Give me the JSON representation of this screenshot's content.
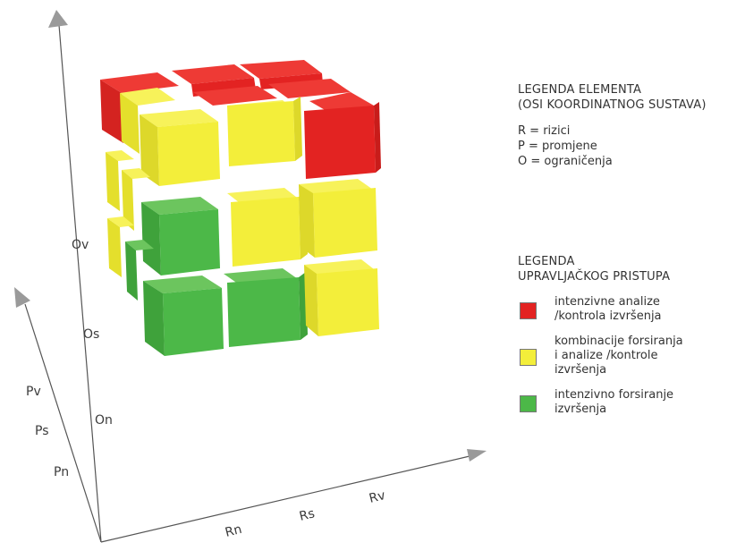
{
  "axis_labels": {
    "o": [
      "On",
      "Os",
      "Ov"
    ],
    "p": [
      "Pn",
      "Ps",
      "Pv"
    ],
    "r": [
      "Rn",
      "Rs",
      "Rv"
    ]
  },
  "legend": {
    "elements_title_1": "LEGENDA ELEMENTA",
    "elements_title_2": "(OSI KOORDINATNOG SUSTAVA)",
    "definitions": [
      "R = rizici",
      "P = promjene",
      "O = ograničenja"
    ],
    "approach_title_1": "LEGENDA",
    "approach_title_2": "UPRAVLJAČKOG PRISTUPA",
    "items": [
      {
        "color": "#e32322",
        "lines": [
          "intenzivne analize",
          "/kontrola izvršenja"
        ]
      },
      {
        "color": "#f3ee3a",
        "lines": [
          "kombinacije forsiranja",
          "i analize /kontrole",
          "izvršenja"
        ]
      },
      {
        "color": "#4cb848",
        "lines": [
          "intenzivno forsiranje",
          "izvršenja"
        ]
      }
    ]
  },
  "colors": {
    "red": "#e32322",
    "yellow": "#f3ee3a",
    "green": "#4cb848",
    "axis": "#555555",
    "arrow": "#9a9a9a"
  }
}
